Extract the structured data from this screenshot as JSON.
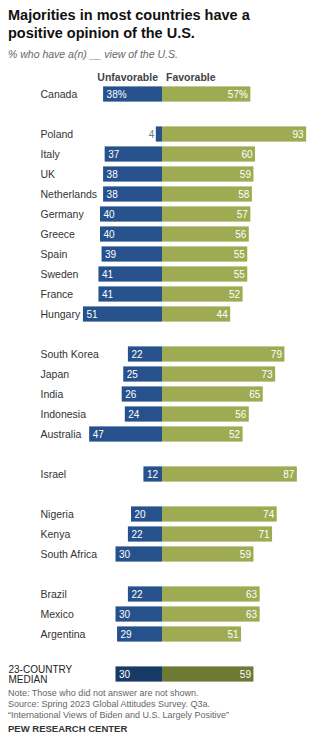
{
  "chart_data": {
    "type": "bar",
    "orientation": "horizontal",
    "title": "Majorities in most countries have a positive opinion of the U.S.",
    "subtitle": "% who have a(n) __ view of the U.S.",
    "categories": [
      "Canada",
      "Poland",
      "Italy",
      "UK",
      "Netherlands",
      "Germany",
      "Greece",
      "Spain",
      "Sweden",
      "France",
      "Hungary",
      "South Korea",
      "Japan",
      "India",
      "Indonesia",
      "Australia",
      "Israel",
      "Nigeria",
      "Kenya",
      "South Africa",
      "Brazil",
      "Mexico",
      "Argentina",
      "23-COUNTRY MEDIAN"
    ],
    "series": [
      {
        "name": "Unfavorable",
        "color": "#26518c",
        "colors": [
          "#26518c",
          "#26518c",
          "#26518c",
          "#26518c",
          "#26518c",
          "#26518c",
          "#26518c",
          "#26518c",
          "#26518c",
          "#26518c",
          "#26518c",
          "#26518c",
          "#26518c",
          "#26518c",
          "#26518c",
          "#26518c",
          "#26518c",
          "#26518c",
          "#26518c",
          "#26518c",
          "#26518c",
          "#26518c",
          "#26518c",
          "#183a66"
        ],
        "values": [
          38,
          4,
          37,
          38,
          38,
          40,
          40,
          39,
          41,
          41,
          51,
          22,
          25,
          26,
          24,
          47,
          12,
          20,
          22,
          30,
          22,
          30,
          29,
          30
        ],
        "value_labels": [
          "38%",
          "4",
          "37",
          "38",
          "38",
          "40",
          "40",
          "39",
          "41",
          "41",
          "51",
          "22",
          "25",
          "26",
          "24",
          "47",
          "12",
          "20",
          "22",
          "30",
          "22",
          "30",
          "29",
          "30"
        ]
      },
      {
        "name": "Favorable",
        "color": "#9eab52",
        "colors": [
          "#9eab52",
          "#9eab52",
          "#9eab52",
          "#9eab52",
          "#9eab52",
          "#9eab52",
          "#9eab52",
          "#9eab52",
          "#9eab52",
          "#9eab52",
          "#9eab52",
          "#9eab52",
          "#9eab52",
          "#9eab52",
          "#9eab52",
          "#9eab52",
          "#9eab52",
          "#9eab52",
          "#9eab52",
          "#9eab52",
          "#9eab52",
          "#9eab52",
          "#9eab52",
          "#6e7a33"
        ],
        "values": [
          57,
          93,
          60,
          59,
          58,
          57,
          56,
          55,
          55,
          52,
          44,
          79,
          73,
          65,
          56,
          52,
          87,
          74,
          71,
          59,
          63,
          63,
          51,
          59
        ],
        "value_labels": [
          "57%",
          "93",
          "60",
          "59",
          "58",
          "57",
          "56",
          "55",
          "55",
          "52",
          "44",
          "79",
          "73",
          "65",
          "56",
          "52",
          "87",
          "74",
          "71",
          "59",
          "63",
          "63",
          "51",
          "59"
        ]
      }
    ],
    "data_labels": true,
    "tick_labels": "y",
    "note": "Note: Those who did not answer are not shown.",
    "source": "Source: Spring 2023 Global Attitudes Survey. Q3a.",
    "report": "“International Views of Biden and U.S. Largely Positive”",
    "credit": "PEW RESEARCH CENTER"
  }
}
